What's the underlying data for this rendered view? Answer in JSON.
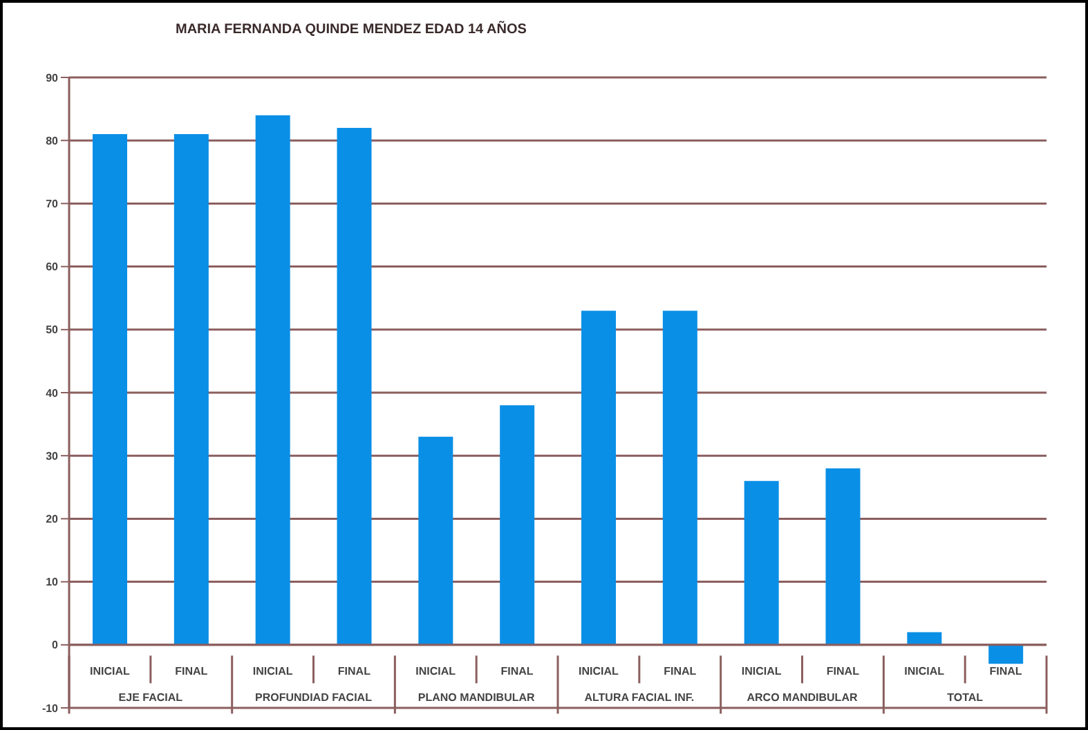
{
  "chart_data": {
    "type": "bar",
    "title": "MARIA FERNANDA QUINDE MENDEZ EDAD 14 AÑOS",
    "categories": [
      "INICIAL",
      "FINAL",
      "INICIAL",
      "FINAL",
      "INICIAL",
      "FINAL",
      "INICIAL",
      "FINAL",
      "INICIAL",
      "FINAL",
      "INICIAL",
      "FINAL"
    ],
    "values": [
      81,
      81,
      84,
      82,
      33,
      38,
      53,
      53,
      26,
      28,
      2,
      -3
    ],
    "color": "#0a8fe6",
    "annotations": [
      "EJE FACIAL",
      "PROFUNDIAD FACIAL",
      "PLANO MANDIBULAR",
      "ALTURA FACIAL INF.",
      "ARCO MANDIBULAR",
      "TOTAL"
    ],
    "ylim": [
      -10,
      90
    ],
    "yticks": [
      -10,
      0,
      10,
      20,
      30,
      40,
      50,
      60,
      70,
      80,
      90
    ],
    "grid": "y"
  }
}
